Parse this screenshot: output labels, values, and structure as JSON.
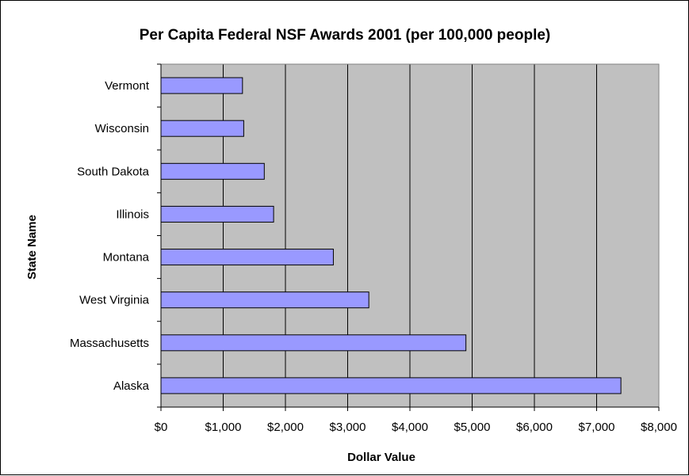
{
  "chart_data": {
    "type": "bar",
    "orientation": "horizontal",
    "title": "Per Capita Federal NSF Awards 2001 (per 100,000 people)",
    "xlabel": "Dollar Value",
    "ylabel": "State Name",
    "categories": [
      "Vermont",
      "Wisconsin",
      "South Dakota",
      "Illinois",
      "Montana",
      "West Virginia",
      "Massachusetts",
      "Alaska"
    ],
    "values": [
      1310,
      1330,
      1660,
      1810,
      2770,
      3340,
      4900,
      7390
    ],
    "xlim": [
      0,
      8000
    ],
    "xticks": [
      0,
      1000,
      2000,
      3000,
      4000,
      5000,
      6000,
      7000,
      8000
    ],
    "xtick_labels": [
      "$0",
      "$1,000",
      "$2,000",
      "$3,000",
      "$4,000",
      "$5,000",
      "$6,000",
      "$7,000",
      "$8,000"
    ],
    "grid": "vertical",
    "legend": "none",
    "colors": {
      "bar_fill": "#9999ff",
      "bar_stroke": "#000000",
      "plot_background": "#c0c0c0",
      "gridline": "#000000"
    }
  }
}
